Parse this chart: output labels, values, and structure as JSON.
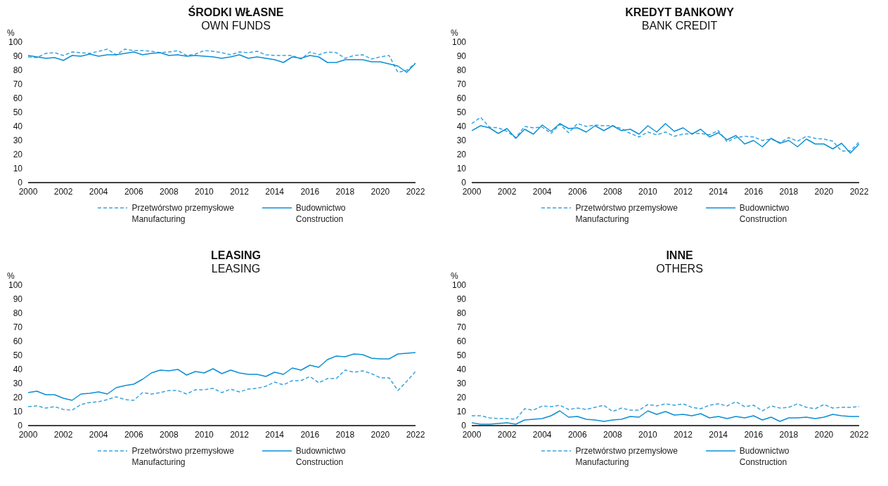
{
  "chart_data": [
    {
      "type": "line",
      "title": "ŚRODKI WŁASNE",
      "subtitle": "OWN FUNDS",
      "ylabel": "%",
      "x": [
        2000,
        2000.5,
        2001,
        2001.5,
        2002,
        2002.5,
        2003,
        2003.5,
        2004,
        2004.5,
        2005,
        2005.5,
        2006,
        2006.5,
        2007,
        2007.5,
        2008,
        2008.5,
        2009,
        2009.5,
        2010,
        2010.5,
        2011,
        2011.5,
        2012,
        2012.5,
        2013,
        2013.5,
        2014,
        2014.5,
        2015,
        2015.5,
        2016,
        2016.5,
        2017,
        2017.5,
        2018,
        2018.5,
        2019,
        2019.5,
        2020,
        2020.5,
        2021,
        2021.5,
        2022
      ],
      "xlim": [
        2000,
        2022
      ],
      "xticks": [
        2000,
        2002,
        2004,
        2006,
        2008,
        2010,
        2012,
        2014,
        2016,
        2018,
        2020,
        2022
      ],
      "ylim": [
        0,
        100
      ],
      "yticks": [
        0,
        10,
        20,
        30,
        40,
        50,
        60,
        70,
        80,
        90,
        100
      ],
      "legend": "bottom",
      "grid": false,
      "series": [
        {
          "name": "Przetwórstwo przemysłowe\nManufacturing",
          "color": "#3aa3de",
          "line_style": "dashed",
          "values": [
            89.5,
            89,
            92,
            92.5,
            90.5,
            93,
            92.5,
            92,
            93.5,
            95,
            91,
            95,
            94,
            94,
            93.5,
            92.5,
            93,
            94,
            90.5,
            91.5,
            94,
            93.5,
            92.5,
            91,
            93,
            92.5,
            93.5,
            91,
            90.5,
            90.5,
            90.5,
            88,
            93,
            91,
            93,
            92.5,
            88.5,
            90.5,
            91,
            88,
            89.5,
            90.5,
            78.5,
            80,
            85
          ]
        },
        {
          "name": "Budownictwo\nConstruction",
          "color": "#0b8fd6",
          "line_style": "solid",
          "values": [
            90.5,
            89.5,
            88.5,
            89,
            87,
            90.5,
            90,
            91.5,
            90,
            91,
            91,
            92,
            93,
            91,
            92,
            92.5,
            90.5,
            91,
            90,
            90.5,
            90,
            89.5,
            88.5,
            89.5,
            91,
            88.5,
            89.5,
            88.5,
            87.5,
            85.5,
            89.5,
            88.5,
            90.5,
            89.5,
            85.5,
            85.5,
            87.5,
            87.5,
            87.5,
            86,
            86,
            84.5,
            83,
            78.5,
            85
          ]
        }
      ]
    },
    {
      "type": "line",
      "title": "KREDYT BANKOWY",
      "subtitle": "BANK CREDIT",
      "ylabel": "%",
      "x": [
        2000,
        2000.5,
        2001,
        2001.5,
        2002,
        2002.5,
        2003,
        2003.5,
        2004,
        2004.5,
        2005,
        2005.5,
        2006,
        2006.5,
        2007,
        2007.5,
        2008,
        2008.5,
        2009,
        2009.5,
        2010,
        2010.5,
        2011,
        2011.5,
        2012,
        2012.5,
        2013,
        2013.5,
        2014,
        2014.5,
        2015,
        2015.5,
        2016,
        2016.5,
        2017,
        2017.5,
        2018,
        2018.5,
        2019,
        2019.5,
        2020,
        2020.5,
        2021,
        2021.5,
        2022
      ],
      "xlim": [
        2000,
        2022
      ],
      "xticks": [
        2000,
        2002,
        2004,
        2006,
        2008,
        2010,
        2012,
        2014,
        2016,
        2018,
        2020,
        2022
      ],
      "ylim": [
        0,
        100
      ],
      "yticks": [
        0,
        10,
        20,
        30,
        40,
        50,
        60,
        70,
        80,
        90,
        100
      ],
      "legend": "bottom",
      "grid": false,
      "series": [
        {
          "name": "Przetwórstwo przemysłowe\nManufacturing",
          "color": "#3aa3de",
          "line_style": "dashed",
          "values": [
            42,
            46.5,
            39.5,
            39,
            36.5,
            32,
            40,
            39,
            39.5,
            35,
            41.5,
            35.5,
            42,
            40,
            41,
            40.5,
            40.5,
            38.5,
            35,
            32.5,
            36,
            34,
            36,
            33,
            34.5,
            35,
            35,
            34,
            37,
            29,
            32,
            33,
            32.5,
            30,
            31,
            28.5,
            32,
            29.5,
            33,
            31.5,
            31,
            29.5,
            22.5,
            22.5,
            29
          ]
        },
        {
          "name": "Budownictwo\nConstruction",
          "color": "#0b8fd6",
          "line_style": "solid",
          "values": [
            37,
            40.5,
            39,
            35,
            38.5,
            31.5,
            38,
            34.5,
            41,
            36.5,
            42,
            38.5,
            39,
            36,
            40.5,
            37,
            40.5,
            37,
            38,
            34.5,
            40.5,
            36,
            42,
            36.5,
            39,
            34.5,
            38,
            32.5,
            35.5,
            30.5,
            33.5,
            27.5,
            30,
            25.5,
            31.5,
            28,
            30,
            25.5,
            31,
            27.5,
            27.5,
            24,
            28,
            21,
            27.5
          ]
        }
      ]
    },
    {
      "type": "line",
      "title": "LEASING",
      "subtitle": "LEASING",
      "ylabel": "%",
      "x": [
        2000,
        2000.5,
        2001,
        2001.5,
        2002,
        2002.5,
        2003,
        2003.5,
        2004,
        2004.5,
        2005,
        2005.5,
        2006,
        2006.5,
        2007,
        2007.5,
        2008,
        2008.5,
        2009,
        2009.5,
        2010,
        2010.5,
        2011,
        2011.5,
        2012,
        2012.5,
        2013,
        2013.5,
        2014,
        2014.5,
        2015,
        2015.5,
        2016,
        2016.5,
        2017,
        2017.5,
        2018,
        2018.5,
        2019,
        2019.5,
        2020,
        2020.5,
        2021,
        2021.5,
        2022
      ],
      "xlim": [
        2000,
        2022
      ],
      "xticks": [
        2000,
        2002,
        2004,
        2006,
        2008,
        2010,
        2012,
        2014,
        2016,
        2018,
        2020,
        2022
      ],
      "ylim": [
        0,
        100
      ],
      "yticks": [
        0,
        10,
        20,
        30,
        40,
        50,
        60,
        70,
        80,
        90,
        100
      ],
      "legend": "bottom",
      "grid": false,
      "series": [
        {
          "name": "Przetwórstwo przemysłowe\nManufacturing",
          "color": "#3aa3de",
          "line_style": "dashed",
          "values": [
            13.5,
            14,
            12.5,
            13.5,
            11.5,
            11,
            15,
            16.5,
            17,
            18.5,
            20.5,
            18.5,
            18,
            23.5,
            22.5,
            23.5,
            25,
            25,
            22.5,
            25.5,
            25.5,
            26.5,
            23.5,
            26,
            24,
            26,
            26.5,
            28,
            31,
            29,
            32,
            32,
            35,
            30.5,
            33.5,
            33.5,
            39.5,
            38,
            39,
            37,
            34,
            34,
            25,
            31.5,
            38.5
          ]
        },
        {
          "name": "Budownictwo\nConstruction",
          "color": "#0b8fd6",
          "line_style": "solid",
          "values": [
            23.5,
            24.5,
            22,
            22,
            19.5,
            18,
            22.5,
            23,
            24,
            22.5,
            27,
            28.5,
            29.5,
            33,
            37.5,
            39.5,
            39,
            40,
            36,
            38.5,
            37.5,
            40.5,
            37,
            39.5,
            37.5,
            36.5,
            36.5,
            35,
            38,
            36.5,
            41,
            39.5,
            43,
            41.5,
            47,
            49.5,
            49,
            51,
            50.5,
            48,
            47.5,
            47.5,
            51,
            51.5,
            52
          ]
        }
      ]
    },
    {
      "type": "line",
      "title": "INNE",
      "subtitle": "OTHERS",
      "ylabel": "%",
      "x": [
        2000,
        2000.5,
        2001,
        2001.5,
        2002,
        2002.5,
        2003,
        2003.5,
        2004,
        2004.5,
        2005,
        2005.5,
        2006,
        2006.5,
        2007,
        2007.5,
        2008,
        2008.5,
        2009,
        2009.5,
        2010,
        2010.5,
        2011,
        2011.5,
        2012,
        2012.5,
        2013,
        2013.5,
        2014,
        2014.5,
        2015,
        2015.5,
        2016,
        2016.5,
        2017,
        2017.5,
        2018,
        2018.5,
        2019,
        2019.5,
        2020,
        2020.5,
        2021,
        2021.5,
        2022
      ],
      "xlim": [
        2000,
        2022
      ],
      "xticks": [
        2000,
        2002,
        2004,
        2006,
        2008,
        2010,
        2012,
        2014,
        2016,
        2018,
        2020,
        2022
      ],
      "ylim": [
        0,
        100
      ],
      "yticks": [
        0,
        10,
        20,
        30,
        40,
        50,
        60,
        70,
        80,
        90,
        100
      ],
      "legend": "bottom",
      "grid": false,
      "series": [
        {
          "name": "Przetwórstwo przemysłowe\nManufacturing",
          "color": "#3aa3de",
          "line_style": "dashed",
          "values": [
            7,
            7,
            5.5,
            5,
            5,
            4.5,
            12,
            11,
            14,
            13.5,
            14.5,
            11.5,
            12.5,
            11.5,
            13,
            14.5,
            10,
            12.5,
            11,
            11,
            15,
            14,
            15.5,
            14.5,
            15.5,
            13,
            12,
            14.5,
            15.5,
            14,
            17,
            13.5,
            14.5,
            10.5,
            14,
            12.5,
            13,
            15.5,
            13,
            12,
            15,
            12.5,
            13,
            13,
            13.5
          ]
        },
        {
          "name": "Budownictwo\nConstruction",
          "color": "#0b8fd6",
          "line_style": "solid",
          "values": [
            2,
            1,
            1,
            1.5,
            2,
            1,
            4,
            4.5,
            5,
            7,
            10.5,
            6,
            6.5,
            4.5,
            4,
            3,
            4,
            4.5,
            6.5,
            6,
            10.5,
            8,
            10,
            7.5,
            8,
            7,
            8.5,
            5.5,
            6.5,
            5,
            6.5,
            5.5,
            7,
            4,
            6,
            3,
            5.5,
            5.5,
            6,
            5,
            6,
            8,
            7,
            6.5,
            6.5
          ]
        }
      ]
    }
  ]
}
